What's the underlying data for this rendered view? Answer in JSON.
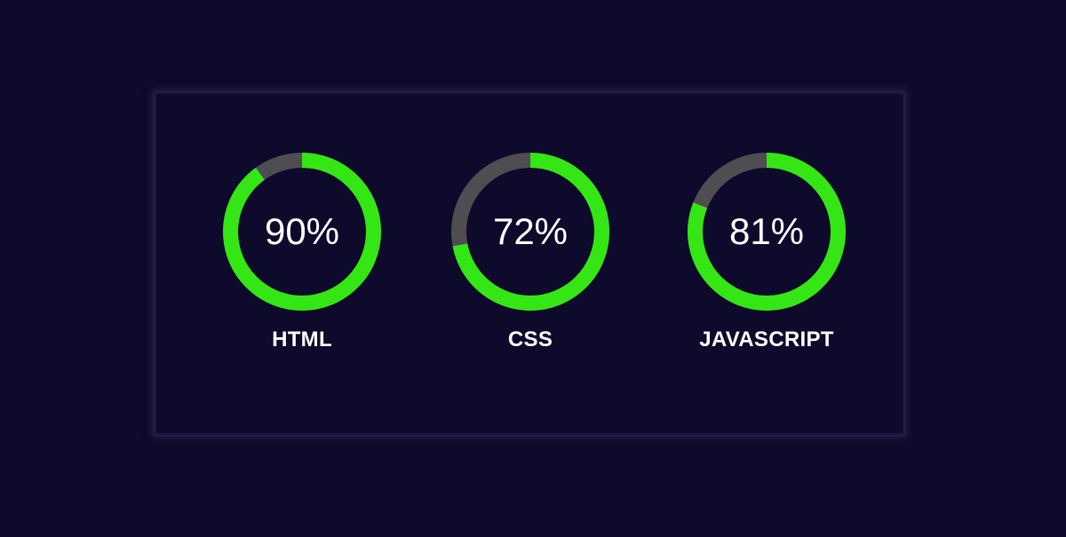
{
  "colors": {
    "background": "#0e0a2b",
    "progress": "#35e615",
    "track": "#4f4d52",
    "text": "#ffffff"
  },
  "skills": [
    {
      "name": "HTML",
      "percent_text": "90%",
      "progress": 0.9
    },
    {
      "name": "CSS",
      "percent_text": "72%",
      "progress": 0.72
    },
    {
      "name": "JAVASCRIPT",
      "percent_text": "81%",
      "progress": 0.81
    }
  ]
}
